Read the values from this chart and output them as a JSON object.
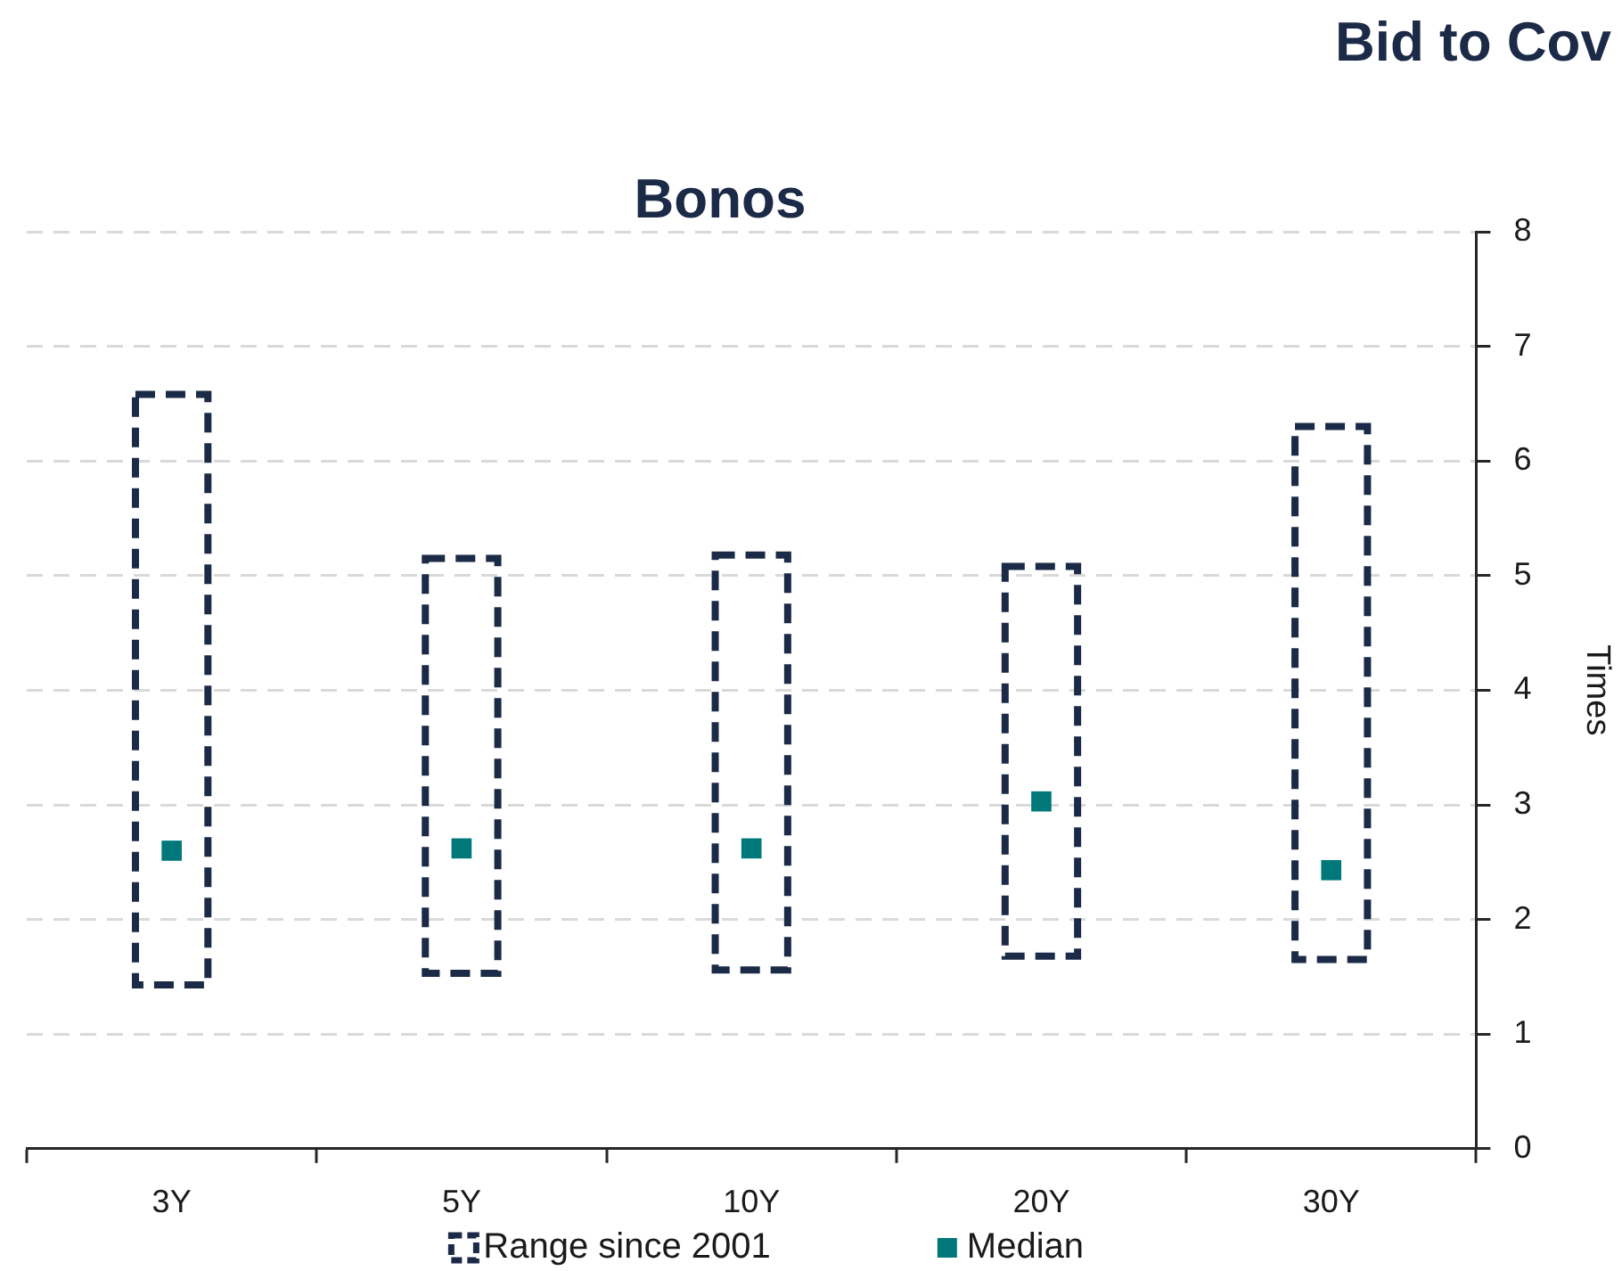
{
  "chart_data": {
    "type": "bar",
    "title": "Bid to Cov",
    "subtitle": "Bonos",
    "ylabel": "Times",
    "categories": [
      "3Y",
      "5Y",
      "10Y",
      "20Y",
      "30Y"
    ],
    "series": [
      {
        "name": "Range since 2001",
        "color": "#1b2a47",
        "base": [
          1.43,
          1.53,
          1.56,
          1.68,
          1.65
        ],
        "values": [
          5.15,
          3.62,
          3.62,
          3.4,
          4.65
        ]
      },
      {
        "name": "Median",
        "type": "scatter",
        "marker": "square",
        "color": "#00787a",
        "x": [
          "3Y",
          "5Y",
          "10Y",
          "20Y",
          "30Y"
        ],
        "values": [
          2.6,
          2.62,
          2.62,
          3.03,
          2.43
        ]
      }
    ],
    "ylim": [
      0,
      8
    ],
    "yticks": [
      0,
      1,
      2,
      3,
      4,
      5,
      6,
      7,
      8
    ],
    "grid": "y",
    "legend": "bottom"
  }
}
